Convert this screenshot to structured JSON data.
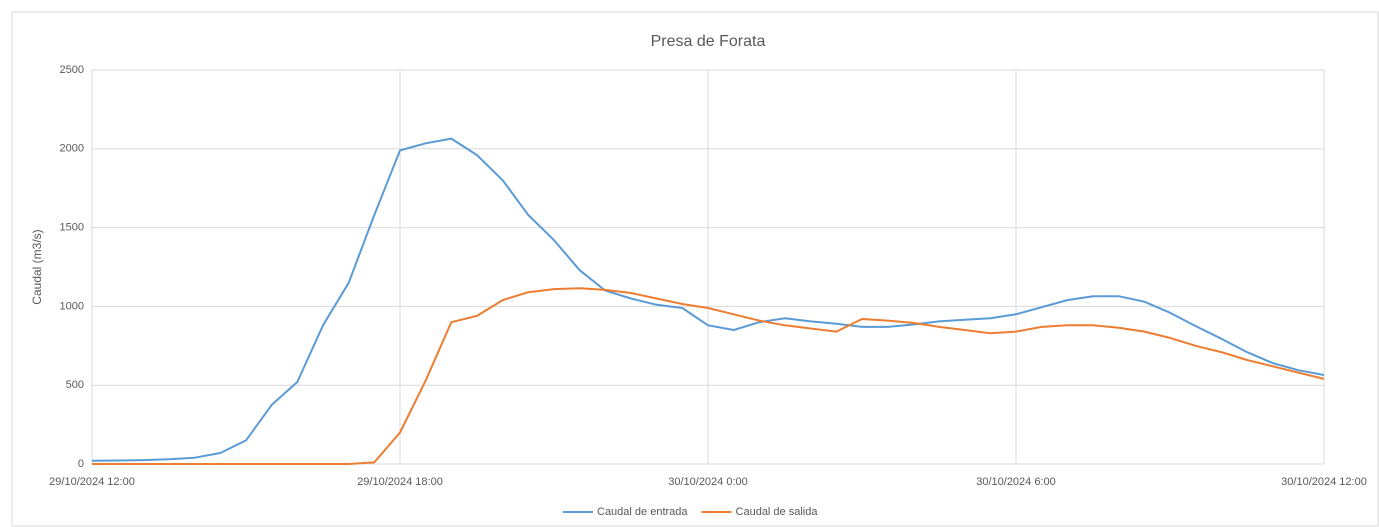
{
  "chart_data": {
    "type": "line",
    "title": "Presa de Forata",
    "y_label": "Caudal (m3/s)",
    "x": [
      "29/10/2024 12:00",
      "29/10/2024 12:30",
      "29/10/2024 13:00",
      "29/10/2024 13:30",
      "29/10/2024 14:00",
      "29/10/2024 14:30",
      "29/10/2024 15:00",
      "29/10/2024 15:30",
      "29/10/2024 16:00",
      "29/10/2024 16:30",
      "29/10/2024 17:00",
      "29/10/2024 17:30",
      "29/10/2024 18:00",
      "29/10/2024 18:30",
      "29/10/2024 19:00",
      "29/10/2024 19:30",
      "29/10/2024 20:00",
      "29/10/2024 20:30",
      "29/10/2024 21:00",
      "29/10/2024 21:30",
      "29/10/2024 22:00",
      "29/10/2024 22:30",
      "29/10/2024 23:00",
      "29/10/2024 23:30",
      "30/10/2024 0:00",
      "30/10/2024 0:30",
      "30/10/2024 1:00",
      "30/10/2024 1:30",
      "30/10/2024 2:00",
      "30/10/2024 2:30",
      "30/10/2024 3:00",
      "30/10/2024 3:30",
      "30/10/2024 4:00",
      "30/10/2024 4:30",
      "30/10/2024 5:00",
      "30/10/2024 5:30",
      "30/10/2024 6:00",
      "30/10/2024 6:30",
      "30/10/2024 7:00",
      "30/10/2024 7:30",
      "30/10/2024 8:00",
      "30/10/2024 8:30",
      "30/10/2024 9:00",
      "30/10/2024 9:30",
      "30/10/2024 10:00",
      "30/10/2024 10:30",
      "30/10/2024 11:00",
      "30/10/2024 11:30",
      "30/10/2024 12:00"
    ],
    "series": [
      {
        "name": "Caudal de entrada",
        "color": "#5b9bd5",
        "values": [
          20,
          22,
          25,
          30,
          40,
          70,
          150,
          375,
          520,
          880,
          1150,
          1580,
          1990,
          2035,
          2065,
          1960,
          1800,
          1580,
          1420,
          1230,
          1100,
          1050,
          1010,
          990,
          880,
          850,
          900,
          925,
          905,
          890,
          870,
          870,
          885,
          905,
          915,
          925,
          950,
          995,
          1040,
          1065,
          1065,
          1030,
          960,
          875,
          795,
          710,
          640,
          595,
          565
        ]
      },
      {
        "name": "Caudal de salida",
        "color": "#ed7d31",
        "values": [
          0,
          0,
          0,
          0,
          0,
          0,
          0,
          0,
          0,
          0,
          0,
          10,
          200,
          530,
          900,
          940,
          1040,
          1090,
          1110,
          1115,
          1105,
          1085,
          1050,
          1015,
          990,
          950,
          910,
          880,
          860,
          840,
          920,
          910,
          895,
          870,
          850,
          830,
          840,
          870,
          880,
          880,
          865,
          840,
          800,
          750,
          710,
          660,
          620,
          580,
          540
        ]
      }
    ],
    "xlim": [
      "29/10/2024 12:00",
      "30/10/2024 12:00"
    ],
    "xticks": [
      "29/10/2024 12:00",
      "29/10/2024 18:00",
      "30/10/2024 0:00",
      "30/10/2024 6:00",
      "30/10/2024 12:00"
    ],
    "ylim": [
      0,
      2500
    ],
    "yticks": [
      0,
      500,
      1000,
      1500,
      2000,
      2500
    ],
    "grid": true,
    "legend": "bottom"
  }
}
